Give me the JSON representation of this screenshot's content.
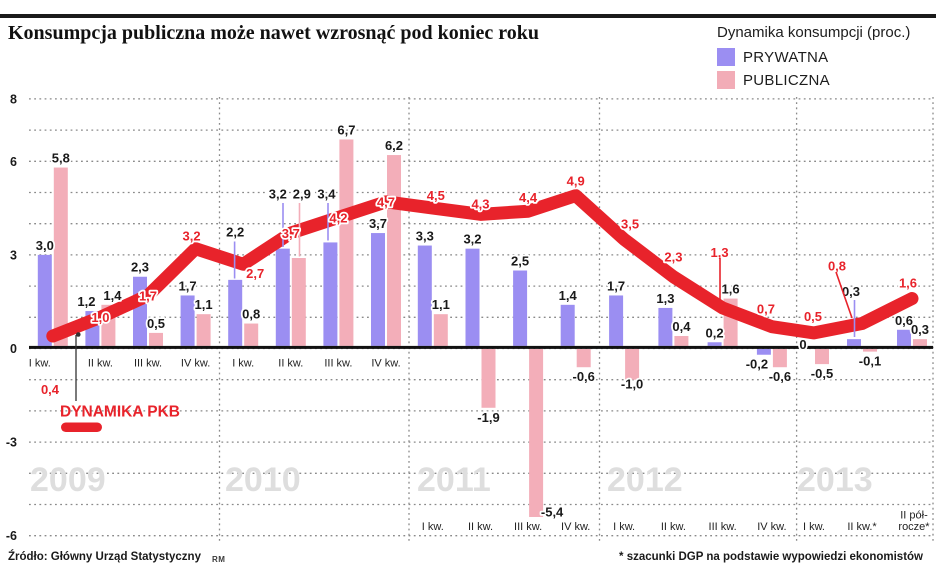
{
  "page": {
    "title": "Konsumpcja publiczna może nawet wzrosnąć pod koniec roku",
    "source": "Źródło: Główny Urząd Statystyczny",
    "source_logo": "RM",
    "footnote": "* szacunki DGP na podstawie wypowiedzi ekonomistów"
  },
  "legend": {
    "title": "Dynamika konsumpcji (proc.)",
    "items": [
      {
        "label": "PRYWATNA",
        "color": "#9b8ef2"
      },
      {
        "label": "PUBLICZNA",
        "color": "#f2acb7"
      }
    ]
  },
  "annotation": {
    "label": "DYNAMIKA PKB",
    "first_value_label": "0,4"
  },
  "colors": {
    "private_bar": "#9b8ef2",
    "public_bar": "#f3aeb9",
    "gdp_line": "#e8232b",
    "grid": "#8a8a8a",
    "axis": "#111111",
    "text": "#1a1a1a",
    "quarter_label": "#222222",
    "year_watermark": "#dedede"
  },
  "chart_data": {
    "type": "bar+line",
    "title": "Konsumpcja publiczna może nawet wzrosnąć pod koniec roku",
    "ylabel": "Dynamika konsumpcji (proc.)",
    "ylim": [
      -6,
      8
    ],
    "yticks_labeled": [
      8,
      6,
      3,
      0,
      -3,
      -6
    ],
    "grid": "dotted horizontal every 1 unit; dotted vertical year separators",
    "legend_position": "top-right",
    "years": [
      {
        "year": "2009",
        "quarters": [
          "I kw.",
          "II kw.",
          "III kw.",
          "IV kw."
        ],
        "labels_position": "below-axis"
      },
      {
        "year": "2010",
        "quarters": [
          "I kw.",
          "II kw.",
          "III kw.",
          "IV kw."
        ],
        "labels_position": "below-axis"
      },
      {
        "year": "2011",
        "quarters": [
          "I kw.",
          "II kw.",
          "III kw.",
          "IV kw."
        ],
        "labels_position": "bottom"
      },
      {
        "year": "2012",
        "quarters": [
          "I kw.",
          "II kw.",
          "III kw.",
          "IV kw."
        ],
        "labels_position": "bottom"
      },
      {
        "year": "2013",
        "quarters": [
          "I kw.",
          "II kw.*",
          "II pół-\nrocze*"
        ],
        "labels_position": "bottom"
      }
    ],
    "series": [
      {
        "name": "PRYWATNA",
        "type": "bar",
        "color": "#9b8ef2",
        "values": [
          3.0,
          1.2,
          2.3,
          1.7,
          2.2,
          3.2,
          3.4,
          3.7,
          3.3,
          3.2,
          2.5,
          1.4,
          1.7,
          1.3,
          0.2,
          -0.2,
          0,
          0.3,
          0.6
        ]
      },
      {
        "name": "PUBLICZNA",
        "type": "bar",
        "color": "#f3aeb9",
        "values": [
          5.8,
          1.4,
          0.5,
          1.1,
          0.8,
          2.9,
          6.7,
          6.2,
          1.1,
          -1.9,
          -5.4,
          -0.6,
          -1.0,
          0.4,
          1.6,
          -0.6,
          -0.5,
          -0.1,
          0.3
        ]
      },
      {
        "name": "DYNAMIKA PKB",
        "type": "line",
        "color": "#e8232b",
        "values": [
          0.4,
          1.0,
          1.7,
          3.2,
          2.7,
          3.7,
          4.2,
          4.7,
          4.5,
          4.3,
          4.4,
          4.9,
          3.5,
          2.3,
          1.3,
          0.7,
          0.5,
          0.8,
          1.6
        ]
      }
    ]
  }
}
